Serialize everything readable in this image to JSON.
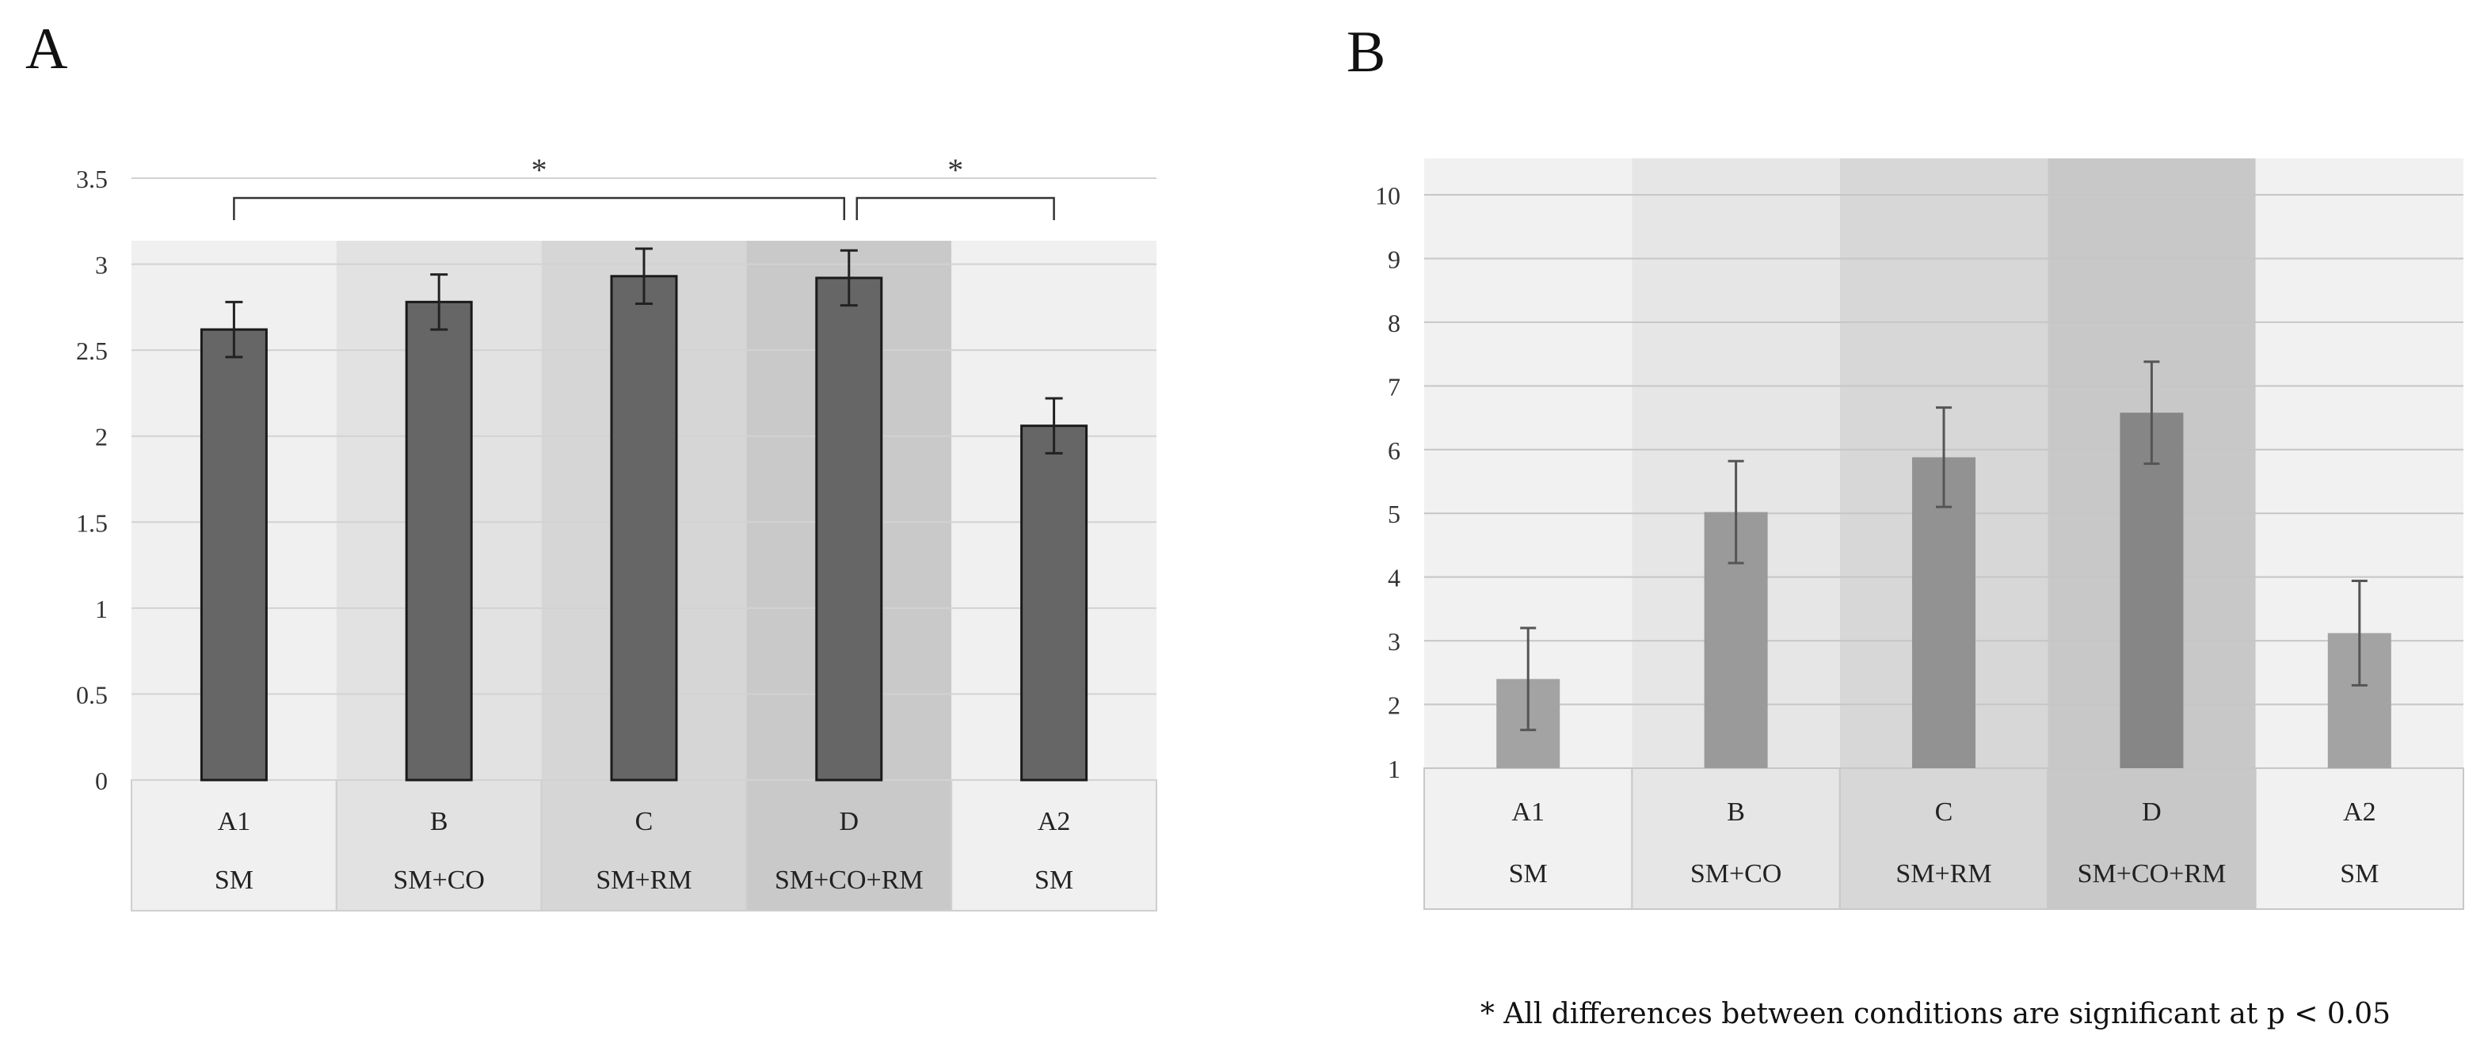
{
  "panel_labels": {
    "a": "A",
    "b": "B"
  },
  "footnote": "* All differences between conditions are significant at p < 0.05",
  "chart_data": [
    {
      "panel": "A",
      "type": "bar",
      "categories": [
        "A1",
        "B",
        "C",
        "D",
        "A2"
      ],
      "sublabels": [
        "SM",
        "SM+CO",
        "SM+RM",
        "SM+CO+RM",
        "SM"
      ],
      "values": [
        2.62,
        2.78,
        2.93,
        2.92,
        2.06
      ],
      "errors": [
        0.16,
        0.16,
        0.16,
        0.16,
        0.16
      ],
      "ylim": [
        0,
        3.5
      ],
      "yticks": [
        0,
        0.5,
        1,
        1.5,
        2,
        2.5,
        3,
        3.5
      ],
      "ytick_labels": [
        "0",
        "0.5",
        "1",
        "1.5",
        "2",
        "2.5",
        "3",
        "3.5"
      ],
      "title": "",
      "xlabel": "",
      "ylabel": "",
      "grid": true,
      "bar_color": "#666666",
      "band_colors": [
        "#f0f0f0",
        "#e2e2e2",
        "#d6d6d6",
        "#c9c9c9",
        "#f0f0f0"
      ],
      "significance": [
        {
          "from": "A1",
          "to": "D",
          "label": "*"
        },
        {
          "from": "D",
          "to": "A2",
          "label": "*"
        }
      ]
    },
    {
      "panel": "B",
      "type": "bar",
      "categories": [
        "A1",
        "B",
        "C",
        "D",
        "A2"
      ],
      "sublabels": [
        "SM",
        "SM+CO",
        "SM+RM",
        "SM+CO+RM",
        "SM"
      ],
      "values": [
        2.4,
        5.02,
        5.88,
        6.58,
        3.12
      ],
      "errors": [
        0.8,
        0.8,
        0.78,
        0.8,
        0.82
      ],
      "ylim": [
        1,
        10
      ],
      "yticks": [
        1,
        2,
        3,
        4,
        5,
        6,
        7,
        8,
        9,
        10
      ],
      "ytick_labels": [
        "1",
        "2",
        "3",
        "4",
        "5",
        "6",
        "7",
        "8",
        "9",
        "10"
      ],
      "title": "",
      "xlabel": "",
      "ylabel": "",
      "grid": true,
      "bar_colors": [
        "#a3a3a3",
        "#9a9a9a",
        "#929292",
        "#868686",
        "#a3a3a3"
      ],
      "band_colors": [
        "#f1f1f1",
        "#e6e6e6",
        "#d7d7d7",
        "#c8c8c8",
        "#f1f1f1"
      ]
    }
  ]
}
